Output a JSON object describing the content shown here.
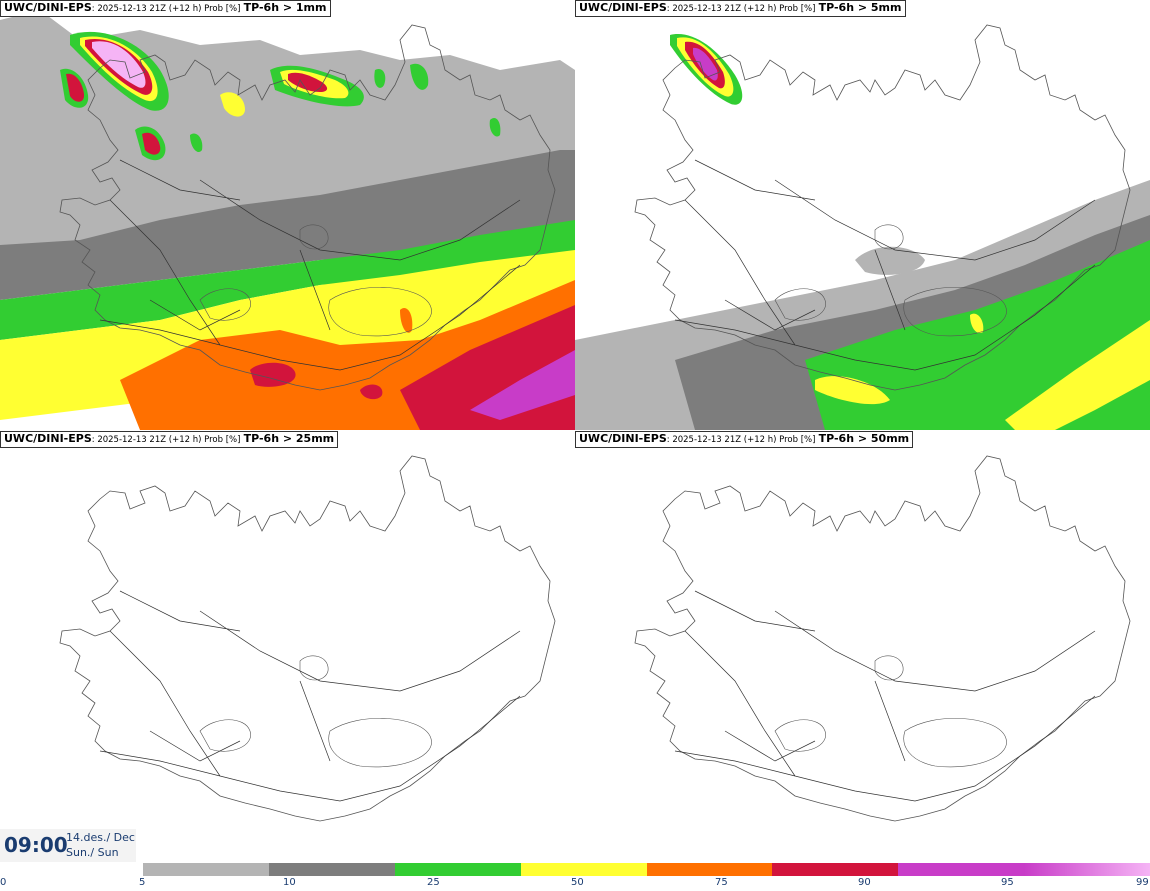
{
  "panels": [
    {
      "model": "UWC/DINI-EPS",
      "run": ": 2025-12-13 21Z (+12 h) Prob [%]",
      "param": "TP-6h > 1mm"
    },
    {
      "model": "UWC/DINI-EPS",
      "run": ": 2025-12-13 21Z (+12 h) Prob [%]",
      "param": "TP-6h > 5mm"
    },
    {
      "model": "UWC/DINI-EPS",
      "run": ": 2025-12-13 21Z (+12 h) Prob [%]",
      "param": "TP-6h > 25mm"
    },
    {
      "model": "UWC/DINI-EPS",
      "run": ": 2025-12-13 21Z (+12 h) Prob [%]",
      "param": "TP-6h > 50mm"
    }
  ],
  "valid_time": {
    "time": "09:00",
    "date_line1": "14.des./ Dec",
    "date_line2": "Sun./ Sun"
  },
  "legend": {
    "ticks": [
      "0",
      "5",
      "10",
      "25",
      "50",
      "75",
      "90",
      "95",
      "99"
    ],
    "colors": [
      "#b4b4b4",
      "#7d7d7d",
      "#32cd32",
      "#ffff32",
      "#ff7000",
      "#d2143c",
      "#c83cc8",
      "#f5b4f5"
    ]
  }
}
